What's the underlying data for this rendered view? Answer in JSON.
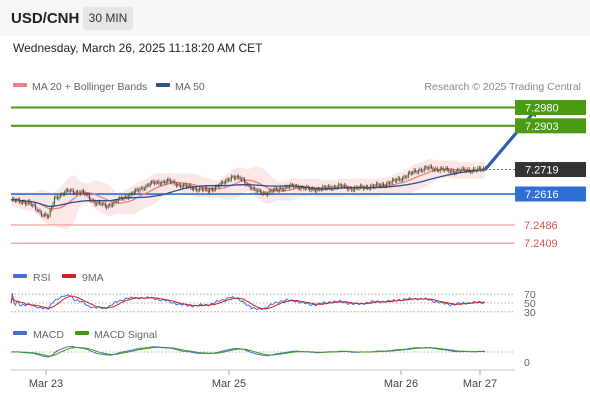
{
  "header": {
    "symbol": "USD/CNH",
    "timeframe": "30 MIN"
  },
  "datetime": "Wednesday, March 26, 2025 11:18:20 AM CET",
  "legend": {
    "ma20_label": "MA 20 + Bollinger Bands",
    "ma50_label": "MA 50",
    "credit": "Research © 2025 Trading Central"
  },
  "colors": {
    "ma20": "#f08080",
    "ma50": "#2f4f8f",
    "resistance": "#4a9a12",
    "support_blue": "#2e6fd4",
    "support_red": "#e05050",
    "arrow": "#2e5fa8",
    "rsi": "#4a6ed0",
    "rsi_ma": "#d02020",
    "macd": "#4a6ed0",
    "macd_signal": "#3a9a12",
    "price_tag": "#333333"
  },
  "chart_data": {
    "type": "candlestick",
    "x_ticks": [
      "Mar 23",
      "Mar 25",
      "Mar 26",
      "Mar 27"
    ],
    "price_range": [
      7.233,
      7.302
    ],
    "levels": [
      {
        "label": "7.2980",
        "value": 7.298,
        "kind": "resistance"
      },
      {
        "label": "7.2903",
        "value": 7.2903,
        "kind": "resistance"
      },
      {
        "label": "7.2719",
        "value": 7.2719,
        "kind": "last"
      },
      {
        "label": "7.2616",
        "value": 7.2616,
        "kind": "support_line"
      },
      {
        "label": "7.2486",
        "value": 7.2486,
        "kind": "support"
      },
      {
        "label": "7.2409",
        "value": 7.2409,
        "kind": "support"
      }
    ],
    "price_path": [
      [
        0,
        7.259
      ],
      [
        12,
        7.258
      ],
      [
        22,
        7.253
      ],
      [
        26,
        7.252
      ],
      [
        30,
        7.26
      ],
      [
        40,
        7.263
      ],
      [
        50,
        7.262
      ],
      [
        58,
        7.258
      ],
      [
        66,
        7.2565
      ],
      [
        74,
        7.259
      ],
      [
        84,
        7.262
      ],
      [
        96,
        7.266
      ],
      [
        108,
        7.267
      ],
      [
        116,
        7.2655
      ],
      [
        126,
        7.264
      ],
      [
        136,
        7.263
      ],
      [
        146,
        7.266
      ],
      [
        152,
        7.269
      ],
      [
        160,
        7.2675
      ],
      [
        168,
        7.263
      ],
      [
        176,
        7.262
      ],
      [
        186,
        7.264
      ],
      [
        196,
        7.265
      ],
      [
        206,
        7.2635
      ],
      [
        216,
        7.264
      ],
      [
        226,
        7.265
      ],
      [
        236,
        7.2638
      ],
      [
        244,
        7.2645
      ],
      [
        254,
        7.2652
      ],
      [
        262,
        7.2665
      ],
      [
        272,
        7.269
      ],
      [
        280,
        7.2715
      ],
      [
        288,
        7.2725
      ],
      [
        296,
        7.272
      ],
      [
        304,
        7.2712
      ],
      [
        312,
        7.2715
      ],
      [
        320,
        7.2718
      ],
      [
        327,
        7.2719
      ]
    ],
    "arrow": {
      "from": [
        327,
        7.2719
      ],
      "to": [
        362,
        7.298
      ]
    },
    "rsi": {
      "legend": [
        "RSI",
        "9MA"
      ],
      "ticks": [
        "70",
        "50",
        "30"
      ],
      "tick_values": [
        70,
        50,
        30
      ],
      "range": [
        25,
        75
      ]
    },
    "macd": {
      "legend": [
        "MACD",
        "MACD Signal"
      ],
      "ticks": [
        "0"
      ],
      "zero": 0
    }
  }
}
